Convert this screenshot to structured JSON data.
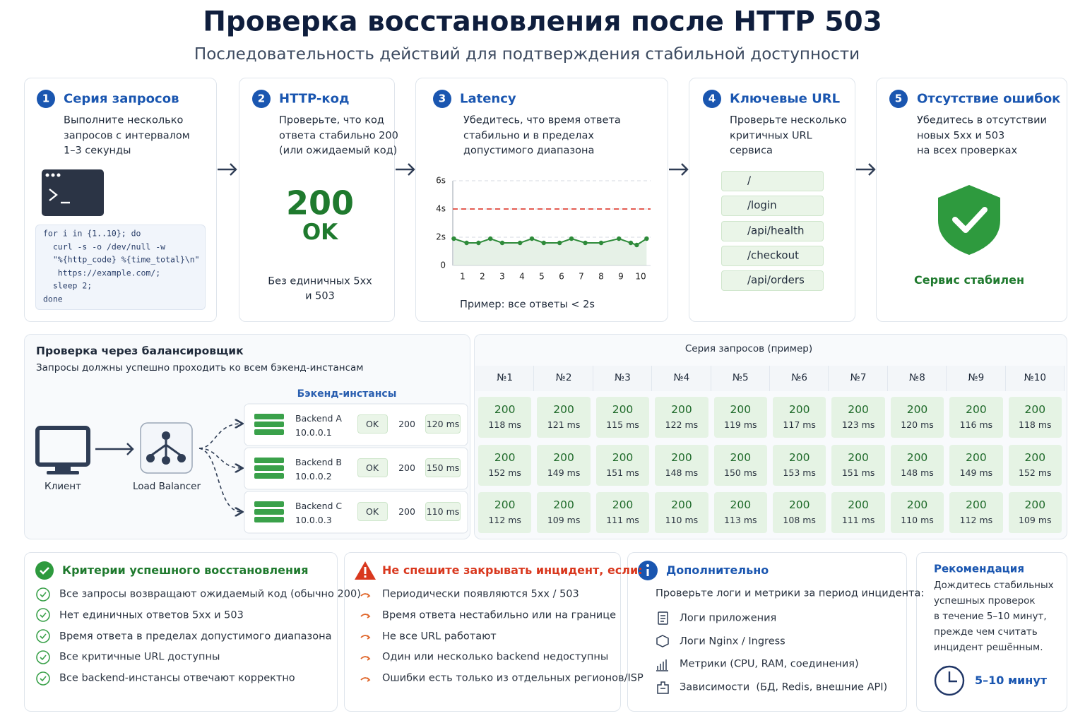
{
  "header": {
    "title": "Проверка восстановления после HTTP 503",
    "subtitle": "Последовательность действий для подтверждения стабильной доступности"
  },
  "steps": [
    {
      "number": "1",
      "title": "Серия запросов",
      "text": [
        "Выполните несколько",
        "запросов с интервалом",
        "1–3 секунды"
      ]
    },
    {
      "number": "2",
      "title": "HTTP-код",
      "text": [
        "Проверьте, что код",
        "ответа стабильно 200",
        "(или ожидаемый код)"
      ]
    },
    {
      "number": "3",
      "title": "Latency",
      "text": [
        "Убедитесь, что время ответа",
        "стабильно и в пределах",
        "допустимого диапазона"
      ]
    },
    {
      "number": "4",
      "title": "Ключевые URL",
      "text": [
        "Проверьте несколько",
        "критичных URL",
        "сервиса"
      ]
    },
    {
      "number": "5",
      "title": "Отсутствие ошибок",
      "text": [
        "Убедитесь в отсутствии",
        "новых 5xx и 503",
        "на всех проверках"
      ]
    }
  ],
  "code": [
    "for i in {1..10}; do",
    "  curl -s -o /dev/null -w",
    "  \"%{http_code} %{time_total}\\n\"",
    "   https://example.com/;",
    "  sleep 2;",
    "done"
  ],
  "status": {
    "code": "200",
    "text": "OK",
    "note": [
      "Без единичных 5xx",
      "и 503"
    ]
  },
  "chart_data": {
    "type": "line",
    "caption": "Пример: все ответы < 2s",
    "x": [
      0.55,
      1.2,
      1.8,
      2.4,
      3,
      3.9,
      4.5,
      5.1,
      5.9,
      6.5,
      7.2,
      8,
      8.9,
      9.5,
      9.8,
      10.3
    ],
    "values": [
      1.9,
      1.6,
      1.6,
      1.9,
      1.6,
      1.6,
      1.9,
      1.6,
      1.6,
      1.9,
      1.6,
      1.6,
      1.9,
      1.6,
      1.45,
      1.9
    ],
    "color": "#2e8b3a",
    "xlim": [
      0.5,
      10.5
    ],
    "xticks": [
      1,
      2,
      3,
      4,
      5,
      6,
      7,
      8,
      9,
      10
    ],
    "ylim": [
      0,
      6
    ],
    "yticks": [
      0,
      {
        "value": 2,
        "label": "2s"
      },
      {
        "value": 4,
        "label": "4s"
      },
      {
        "value": 6,
        "label": "6s"
      }
    ],
    "grid": true,
    "threshold": 4,
    "threshold_color": "#e0463a"
  },
  "urls": [
    "/",
    "/login",
    "/api/health",
    "/checkout",
    "/api/orders"
  ],
  "stable": "Сервис стабилен",
  "balancer": {
    "title": "Проверка через балансировщик",
    "subtitle": "Запросы должны успешно проходить ко всем бэкенд-инстансам",
    "backends_label": "Бэкенд-инстансы",
    "client": "Клиент",
    "lb": "Load Balancer",
    "backends": [
      {
        "name": "Backend A",
        "ip": "10.0.0.1",
        "status": "OK",
        "code": "200",
        "time": "120 ms"
      },
      {
        "name": "Backend B",
        "ip": "10.0.0.2",
        "status": "OK",
        "code": "200",
        "time": "150 ms"
      },
      {
        "name": "Backend C",
        "ip": "10.0.0.3",
        "status": "OK",
        "code": "200",
        "time": "110 ms"
      }
    ]
  },
  "series_table": {
    "title": "Серия запросов (пример)",
    "headers": [
      "№1",
      "№2",
      "№3",
      "№4",
      "№5",
      "№6",
      "№7",
      "№8",
      "№9",
      "№10"
    ],
    "codes": [
      [
        "200",
        "200",
        "200",
        "200",
        "200",
        "200",
        "200",
        "200",
        "200",
        "200"
      ],
      [
        "200",
        "200",
        "200",
        "200",
        "200",
        "200",
        "200",
        "200",
        "200",
        "200"
      ],
      [
        "200",
        "200",
        "200",
        "200",
        "200",
        "200",
        "200",
        "200",
        "200",
        "200"
      ]
    ],
    "times": [
      [
        "118 ms",
        "121 ms",
        "115 ms",
        "122 ms",
        "119 ms",
        "117 ms",
        "123 ms",
        "120 ms",
        "116 ms",
        "118 ms"
      ],
      [
        "152 ms",
        "149 ms",
        "151 ms",
        "148 ms",
        "150 ms",
        "153 ms",
        "151 ms",
        "148 ms",
        "149 ms",
        "152 ms"
      ],
      [
        "112 ms",
        "109 ms",
        "111 ms",
        "110 ms",
        "113 ms",
        "108 ms",
        "111 ms",
        "110 ms",
        "112 ms",
        "109 ms"
      ]
    ]
  },
  "criteria": {
    "title": "Критерии успешного восстановления",
    "items": [
      "Все запросы возвращают ожидаемый код (обычно 200)",
      "Нет единичных ответов 5xx и 503",
      "Время ответа в пределах допустимого диапазона",
      "Все критичные URL доступны",
      "Все backend-инстансы отвечают корректно"
    ]
  },
  "warning": {
    "title": "Не спешите закрывать инцидент, если:",
    "items": [
      "Периодически появляются 5xx / 503",
      "Время ответа нестабильно или на границе",
      "Не все URL работают",
      "Один или несколько backend недоступны",
      "Ошибки есть только из отдельных регионов/ISP"
    ]
  },
  "extra": {
    "title": "Дополнительно",
    "intro": "Проверьте логи и метрики за период инцидента:",
    "items": [
      "Логи приложения",
      "Логи Nginx / Ingress",
      "Метрики (CPU, RAM, соединения)",
      "Зависимости  (БД, Redis, внешние API)"
    ]
  },
  "recommendation": {
    "title": "Рекомендация",
    "text": [
      "Дождитесь стабильных",
      "успешных проверок",
      "в течение 5–10 минут,",
      "прежде чем считать",
      "инцидент решённым."
    ],
    "duration": "5–10 минут"
  }
}
